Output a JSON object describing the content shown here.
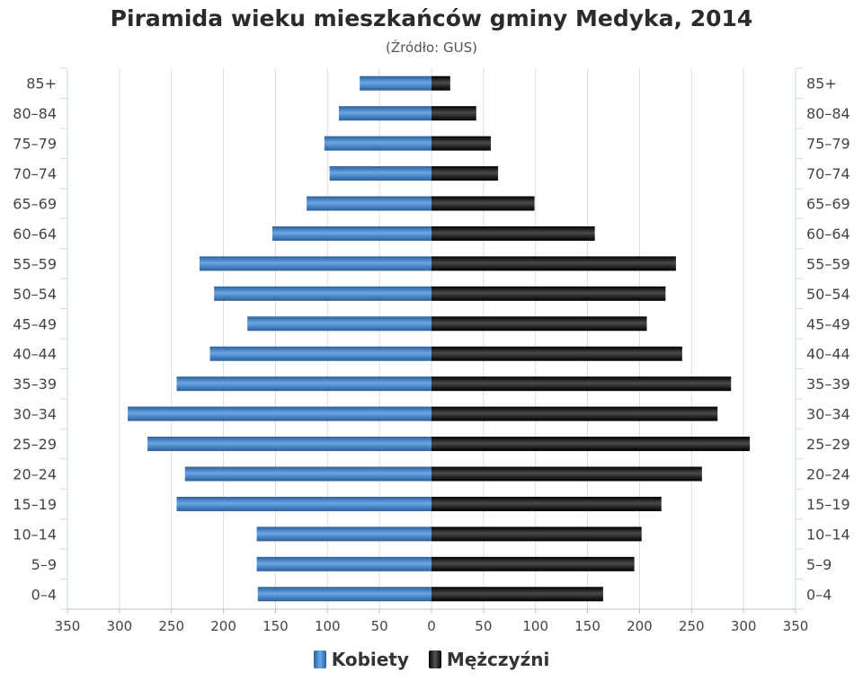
{
  "chart_data": {
    "type": "bar",
    "orientation": "horizontal-pyramid",
    "title": "Piramida wieku mieszkańców gminy Medyka, 2014",
    "subtitle": "(Źródło: GUS)",
    "categories": [
      "85+",
      "80–84",
      "75–79",
      "70–74",
      "65–69",
      "60–64",
      "55–59",
      "50–54",
      "45–49",
      "40–44",
      "35–39",
      "30–34",
      "25–29",
      "20–24",
      "15–19",
      "10–14",
      "5–9",
      "0–4"
    ],
    "series": [
      {
        "name": "Kobiety",
        "side": "left",
        "color": "#3d7cc4",
        "values": [
          69,
          89,
          103,
          98,
          120,
          153,
          223,
          209,
          177,
          213,
          245,
          292,
          273,
          237,
          245,
          168,
          168,
          167
        ]
      },
      {
        "name": "Mężczyźni",
        "side": "right",
        "color": "#1a1a1a",
        "values": [
          18,
          43,
          57,
          64,
          99,
          157,
          235,
          225,
          207,
          241,
          288,
          275,
          306,
          260,
          221,
          202,
          195,
          165
        ]
      }
    ],
    "xlim": [
      -350,
      350
    ],
    "ticks": [
      "350",
      "300",
      "250",
      "200",
      "150",
      "100",
      "50",
      "0",
      "50",
      "100",
      "150",
      "200",
      "250",
      "300",
      "350"
    ],
    "tick_values": [
      -350,
      -300,
      -250,
      -200,
      -150,
      -100,
      -50,
      0,
      50,
      100,
      150,
      200,
      250,
      300,
      350
    ],
    "grid": true,
    "legend_position": "bottom-center"
  }
}
